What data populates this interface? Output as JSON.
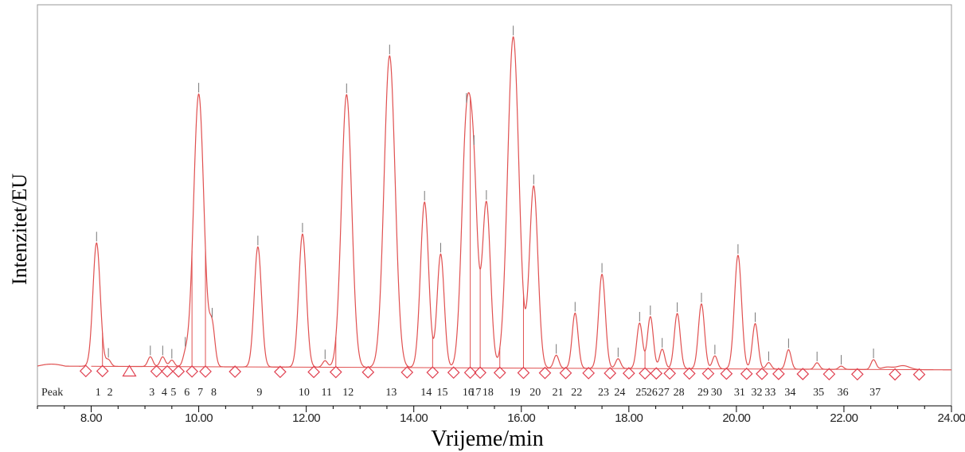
{
  "chart_data": {
    "type": "line",
    "xlabel": "Vrijeme/min",
    "ylabel": "Intenzitet/EU",
    "xlim": [
      7.0,
      24.0
    ],
    "ylim": [
      0,
      100
    ],
    "x_ticks": [
      "8.00",
      "10.00",
      "12.00",
      "14.00",
      "16.00",
      "18.00",
      "20.00",
      "22.00",
      "24.00"
    ],
    "x_tick_values": [
      8,
      10,
      12,
      14,
      16,
      18,
      20,
      22,
      24
    ],
    "peak_row_title": "Peak",
    "series": [
      {
        "peaks": [
          {
            "label": "1",
            "t": 8.1,
            "h": 38
          },
          {
            "label": "2",
            "t": 8.32,
            "h": 2
          },
          {
            "label": "3",
            "t": 9.1,
            "h": 3
          },
          {
            "label": "4",
            "t": 9.33,
            "h": 3
          },
          {
            "label": "5",
            "t": 9.5,
            "h": 2
          },
          {
            "label": "6",
            "t": 9.75,
            "h": 3
          },
          {
            "label": "7",
            "t": 10.0,
            "h": 84
          },
          {
            "label": "8",
            "t": 10.25,
            "h": 12
          },
          {
            "label": "9",
            "t": 11.1,
            "h": 37
          },
          {
            "label": "10",
            "t": 11.93,
            "h": 41
          },
          {
            "label": "11",
            "t": 12.35,
            "h": 2
          },
          {
            "label": "12",
            "t": 12.75,
            "h": 84
          },
          {
            "label": "13",
            "t": 13.55,
            "h": 96
          },
          {
            "label": "14",
            "t": 14.2,
            "h": 51
          },
          {
            "label": "15",
            "t": 14.5,
            "h": 35
          },
          {
            "label": "16",
            "t": 14.98,
            "h": 74
          },
          {
            "label": "17",
            "t": 15.12,
            "h": 46
          },
          {
            "label": "18",
            "t": 15.35,
            "h": 51
          },
          {
            "label": "19",
            "t": 15.85,
            "h": 102
          },
          {
            "label": "20",
            "t": 16.23,
            "h": 56
          },
          {
            "label": "21",
            "t": 16.65,
            "h": 4
          },
          {
            "label": "22",
            "t": 17.0,
            "h": 17
          },
          {
            "label": "23",
            "t": 17.5,
            "h": 29
          },
          {
            "label": "24",
            "t": 17.8,
            "h": 3
          },
          {
            "label": "25",
            "t": 18.2,
            "h": 14
          },
          {
            "label": "26",
            "t": 18.4,
            "h": 16
          },
          {
            "label": "27",
            "t": 18.62,
            "h": 6
          },
          {
            "label": "28",
            "t": 18.9,
            "h": 17
          },
          {
            "label": "29",
            "t": 19.35,
            "h": 20
          },
          {
            "label": "30",
            "t": 19.6,
            "h": 4
          },
          {
            "label": "31",
            "t": 20.03,
            "h": 35
          },
          {
            "label": "32",
            "t": 20.35,
            "h": 14
          },
          {
            "label": "33",
            "t": 20.6,
            "h": 2
          },
          {
            "label": "34",
            "t": 20.97,
            "h": 6
          },
          {
            "label": "35",
            "t": 21.5,
            "h": 2
          },
          {
            "label": "36",
            "t": 21.95,
            "h": 1
          },
          {
            "label": "37",
            "t": 22.55,
            "h": 3
          }
        ]
      }
    ],
    "colors": {
      "trace": "#e05050",
      "marker": "#e04050",
      "tick_mark": "#777777",
      "axis": "#000000",
      "frame": "#999999"
    }
  }
}
